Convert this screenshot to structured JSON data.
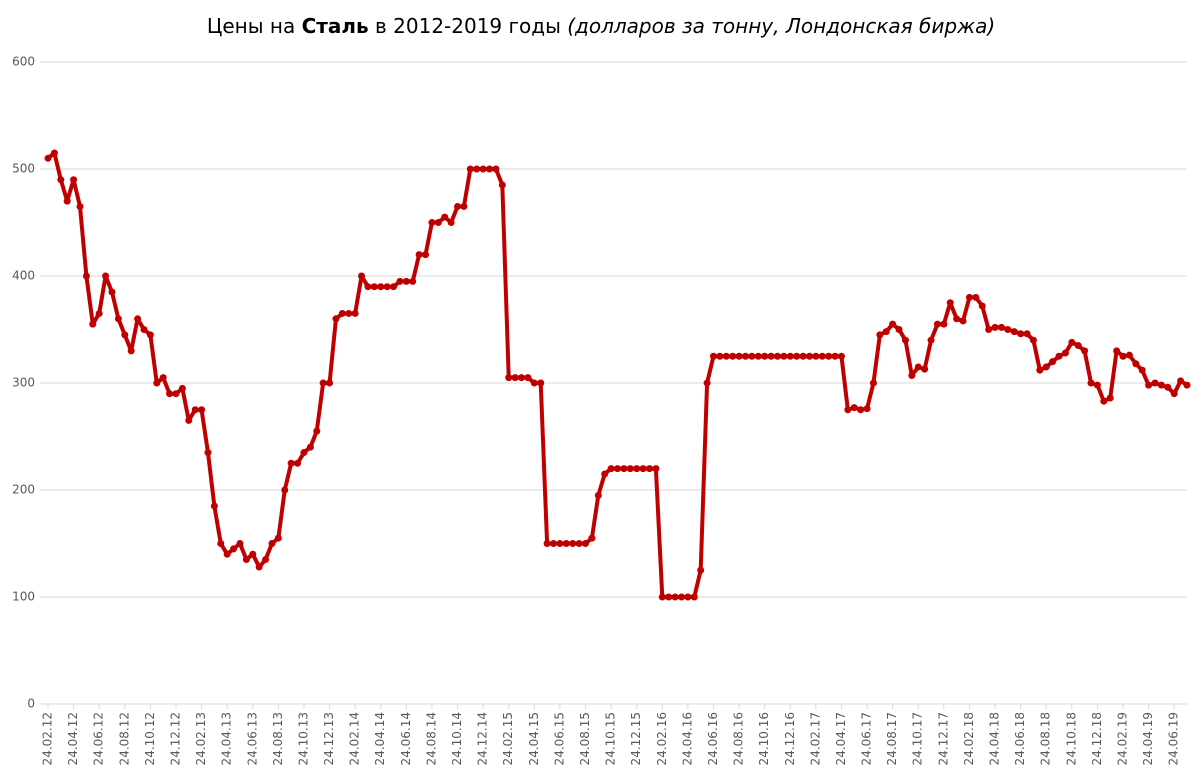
{
  "chart_data": {
    "type": "line",
    "title_parts": [
      "Цены на ",
      "Сталь",
      " в 2012-2019 годы ",
      "(долларов за тонну, Лондонская биржа)"
    ],
    "categories": [
      "24.02.12",
      null,
      null,
      null,
      "24.04.12",
      null,
      null,
      null,
      "24.06.12",
      null,
      null,
      null,
      "24.08.12",
      null,
      null,
      null,
      "24.10.12",
      null,
      null,
      null,
      "24.12.12",
      null,
      null,
      null,
      "24.02.13",
      null,
      null,
      null,
      "24.04.13",
      null,
      null,
      null,
      "24.06.13",
      null,
      null,
      null,
      "24.08.13",
      null,
      null,
      null,
      "24.10.13",
      null,
      null,
      null,
      "24.12.13",
      null,
      null,
      null,
      "24.02.14",
      null,
      null,
      null,
      "24.04.14",
      null,
      null,
      null,
      "24.06.14",
      null,
      null,
      null,
      "24.08.14",
      null,
      null,
      null,
      "24.10.14",
      null,
      null,
      null,
      "24.12.14",
      null,
      null,
      null,
      "24.02.15",
      null,
      null,
      null,
      "24.04.15",
      null,
      null,
      null,
      "24.06.15",
      null,
      null,
      null,
      "24.08.15",
      null,
      null,
      null,
      "24.10.15",
      null,
      null,
      null,
      "24.12.15",
      null,
      null,
      null,
      "24.02.16",
      null,
      null,
      null,
      "24.04.16",
      null,
      null,
      null,
      "24.06.16",
      null,
      null,
      null,
      "24.08.16",
      null,
      null,
      null,
      "24.10.16",
      null,
      null,
      null,
      "24.12.16",
      null,
      null,
      null,
      "24.02.17",
      null,
      null,
      null,
      "24.04.17",
      null,
      null,
      null,
      "24.06.17",
      null,
      null,
      null,
      "24.08.17",
      null,
      null,
      null,
      "24.10.17",
      null,
      null,
      null,
      "24.12.17",
      null,
      null,
      null,
      "24.02.18",
      null,
      null,
      null,
      "24.04.18",
      null,
      null,
      null,
      "24.06.18",
      null,
      null,
      null,
      "24.08.18",
      null,
      null,
      null,
      "24.10.18",
      null,
      null,
      null,
      "24.12.18",
      null,
      null,
      null,
      "24.02.19",
      null,
      null,
      null,
      "24.04.19",
      null,
      null,
      null,
      "24.06.19",
      null,
      null
    ],
    "series": [
      {
        "color": "#c00000",
        "values": [
          510,
          515,
          490,
          470,
          490,
          465,
          400,
          355,
          365,
          400,
          385,
          360,
          345,
          330,
          360,
          350,
          345,
          300,
          305,
          290,
          290,
          295,
          265,
          275,
          275,
          235,
          185,
          150,
          140,
          145,
          150,
          135,
          140,
          128,
          135,
          150,
          155,
          200,
          225,
          225,
          235,
          240,
          255,
          300,
          300,
          360,
          365,
          365,
          365,
          400,
          390,
          390,
          390,
          390,
          390,
          395,
          395,
          395,
          420,
          420,
          450,
          450,
          455,
          450,
          465,
          465,
          500,
          500,
          500,
          500,
          500,
          485,
          305,
          305,
          305,
          305,
          300,
          300,
          150,
          150,
          150,
          150,
          150,
          150,
          150,
          155,
          195,
          215,
          220,
          220,
          220,
          220,
          220,
          220,
          220,
          220,
          100,
          100,
          100,
          100,
          100,
          100,
          125,
          300,
          325,
          325,
          325,
          325,
          325,
          325,
          325,
          325,
          325,
          325,
          325,
          325,
          325,
          325,
          325,
          325,
          325,
          325,
          325,
          325,
          325,
          275,
          277,
          275,
          276,
          300,
          345,
          348,
          355,
          350,
          340,
          307,
          315,
          313,
          340,
          355,
          355,
          375,
          360,
          358,
          380,
          380,
          372,
          350,
          352,
          352,
          350,
          348,
          346,
          346,
          340,
          312,
          315,
          320,
          325,
          328,
          338,
          335,
          330,
          300,
          298,
          283,
          286,
          330,
          325,
          326,
          318,
          312,
          298,
          300,
          298,
          296,
          290,
          302,
          298
        ]
      }
    ],
    "ylim": [
      0,
      600
    ],
    "yticks": [
      0,
      100,
      200,
      300,
      400,
      500,
      600
    ],
    "grid": true
  }
}
